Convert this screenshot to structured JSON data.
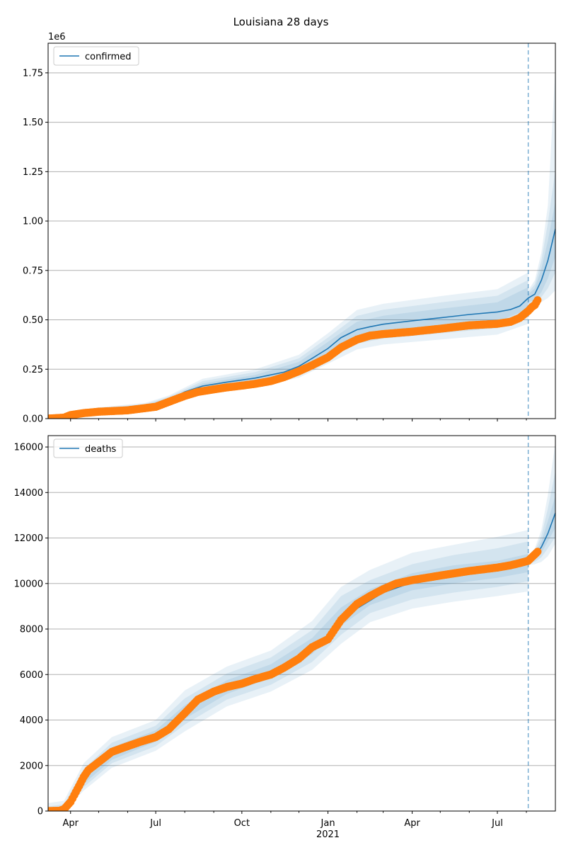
{
  "figure": {
    "title": "Louisiana 28 days"
  },
  "colors": {
    "line": "#1f77b4",
    "observed": "#ff7f0e",
    "band": "#1f77b4",
    "vline": "#1f77b4",
    "grid": "#b0b0b0"
  },
  "chart_data": [
    {
      "type": "line",
      "panel": "top",
      "legend": [
        "confirmed"
      ],
      "legend_loc": "upper-left",
      "offset_text": "1e6",
      "grid": "horizontal",
      "ylim": [
        0,
        1900000
      ],
      "yticks": [
        0,
        250000,
        500000,
        750000,
        1000000,
        1250000,
        1500000,
        1750000
      ],
      "ytick_labels": [
        "0.00",
        "0.25",
        "0.50",
        "0.75",
        "1.00",
        "1.25",
        "1.50",
        "1.75"
      ],
      "xlim": [
        "2020-03-08",
        "2021-09-01"
      ],
      "forecast_start": "2021-08-03",
      "model": {
        "x": [
          "2020-03-08",
          "2020-03-25",
          "2020-04-01",
          "2020-04-15",
          "2020-05-01",
          "2020-06-01",
          "2020-06-20",
          "2020-07-01",
          "2020-07-15",
          "2020-08-01",
          "2020-08-20",
          "2020-09-15",
          "2020-10-15",
          "2020-11-15",
          "2020-12-01",
          "2020-12-15",
          "2021-01-01",
          "2021-01-15",
          "2021-02-01",
          "2021-02-15",
          "2021-03-01",
          "2021-04-01",
          "2021-05-01",
          "2021-06-01",
          "2021-07-01",
          "2021-07-15",
          "2021-07-25",
          "2021-08-03",
          "2021-08-10",
          "2021-08-17",
          "2021-08-24",
          "2021-09-01"
        ],
        "y": [
          0,
          5000,
          20000,
          35000,
          45000,
          55000,
          62000,
          72000,
          95000,
          135000,
          165000,
          185000,
          205000,
          235000,
          265000,
          305000,
          355000,
          410000,
          450000,
          465000,
          478000,
          495000,
          510000,
          527000,
          540000,
          552000,
          570000,
          610000,
          630000,
          700000,
          800000,
          960000
        ]
      },
      "bands": {
        "x": [
          "2020-03-08",
          "2020-04-01",
          "2020-05-01",
          "2020-06-20",
          "2020-07-15",
          "2020-08-20",
          "2020-10-15",
          "2020-12-01",
          "2021-01-01",
          "2021-02-01",
          "2021-03-01",
          "2021-05-01",
          "2021-07-01",
          "2021-08-03"
        ],
        "inner": [
          [
            0,
            0
          ],
          [
            17000,
            23000
          ],
          [
            41000,
            49000
          ],
          [
            56000,
            68000
          ],
          [
            87000,
            103000
          ],
          [
            152000,
            178000
          ],
          [
            189000,
            221000
          ],
          [
            243000,
            287000
          ],
          [
            322000,
            388000
          ],
          [
            410000,
            490000
          ],
          [
            435000,
            521000
          ],
          [
            464000,
            556000
          ],
          [
            491000,
            589000
          ],
          [
            555000,
            665000
          ]
        ],
        "middle": [
          [
            0,
            0
          ],
          [
            14000,
            26000
          ],
          [
            37000,
            53000
          ],
          [
            50000,
            74000
          ],
          [
            80000,
            110000
          ],
          [
            140000,
            190000
          ],
          [
            175000,
            235000
          ],
          [
            225000,
            305000
          ],
          [
            300000,
            410000
          ],
          [
            380000,
            520000
          ],
          [
            405000,
            551000
          ],
          [
            432000,
            588000
          ],
          [
            458000,
            622000
          ],
          [
            518000,
            702000
          ]
        ],
        "outer": [
          [
            0,
            0
          ],
          [
            11000,
            29000
          ],
          [
            33000,
            57000
          ],
          [
            44000,
            80000
          ],
          [
            73000,
            117000
          ],
          [
            128000,
            202000
          ],
          [
            161000,
            249000
          ],
          [
            207000,
            323000
          ],
          [
            278000,
            432000
          ],
          [
            350000,
            550000
          ],
          [
            375000,
            581000
          ],
          [
            400000,
            620000
          ],
          [
            425000,
            655000
          ],
          [
            480000,
            740000
          ]
        ]
      },
      "forecast_bands": {
        "x": [
          "2021-08-03",
          "2021-08-10",
          "2021-08-17",
          "2021-08-24",
          "2021-09-01"
        ],
        "inner": [
          [
            590000,
            630000
          ],
          [
            600000,
            660000
          ],
          [
            640000,
            760000
          ],
          [
            710000,
            900000
          ],
          [
            820000,
            1100000
          ]
        ],
        "middle": [
          [
            580000,
            640000
          ],
          [
            585000,
            680000
          ],
          [
            615000,
            800000
          ],
          [
            660000,
            990000
          ],
          [
            740000,
            1260000
          ]
        ],
        "outer": [
          [
            570000,
            650000
          ],
          [
            570000,
            700000
          ],
          [
            590000,
            840000
          ],
          [
            610000,
            1080000
          ],
          [
            650000,
            1780000
          ]
        ]
      },
      "observed": {
        "x": [
          "2020-03-08",
          "2020-03-25",
          "2020-04-01",
          "2020-04-15",
          "2020-05-01",
          "2020-06-01",
          "2020-07-01",
          "2020-07-15",
          "2020-08-01",
          "2020-08-15",
          "2020-09-01",
          "2020-09-15",
          "2020-10-01",
          "2020-10-15",
          "2020-11-01",
          "2020-11-15",
          "2020-12-01",
          "2020-12-15",
          "2021-01-01",
          "2021-01-15",
          "2021-02-01",
          "2021-02-15",
          "2021-03-01",
          "2021-04-01",
          "2021-05-01",
          "2021-06-01",
          "2021-07-01",
          "2021-07-15",
          "2021-07-25",
          "2021-08-03",
          "2021-08-07",
          "2021-08-10",
          "2021-08-13"
        ],
        "y": [
          0,
          5000,
          18000,
          28000,
          35000,
          42000,
          60000,
          85000,
          115000,
          135000,
          148000,
          158000,
          167000,
          176000,
          190000,
          210000,
          240000,
          270000,
          310000,
          360000,
          400000,
          420000,
          428000,
          440000,
          455000,
          472000,
          480000,
          490000,
          510000,
          545000,
          565000,
          575000,
          600000
        ]
      }
    },
    {
      "type": "line",
      "panel": "bottom",
      "legend": [
        "deaths"
      ],
      "legend_loc": "upper-left",
      "grid": "horizontal",
      "ylim": [
        0,
        16500
      ],
      "yticks": [
        0,
        2000,
        4000,
        6000,
        8000,
        10000,
        12000,
        14000,
        16000
      ],
      "ytick_labels": [
        "0",
        "2000",
        "4000",
        "6000",
        "8000",
        "10000",
        "12000",
        "14000",
        "16000"
      ],
      "xlim": [
        "2020-03-08",
        "2021-09-01"
      ],
      "xticks": [
        "2020-04-01",
        "2020-07-01",
        "2020-10-01",
        "2021-01-01",
        "2021-04-01",
        "2021-07-01"
      ],
      "xtick_labels": [
        "Apr",
        "Jul",
        "Oct",
        "Jan",
        "Apr",
        "Jul"
      ],
      "xtick_sublabel": "2021",
      "forecast_start": "2021-08-03",
      "model": {
        "x": [
          "2020-03-08",
          "2020-03-25",
          "2020-04-01",
          "2020-04-15",
          "2020-05-01",
          "2020-06-01",
          "2020-07-01",
          "2020-08-01",
          "2020-09-01",
          "2020-10-01",
          "2020-11-01",
          "2020-12-01",
          "2021-01-01",
          "2021-02-01",
          "2021-03-01",
          "2021-04-01",
          "2021-05-01",
          "2021-06-01",
          "2021-07-01",
          "2021-07-15",
          "2021-08-03",
          "2021-08-10",
          "2021-08-17",
          "2021-08-24",
          "2021-09-01"
        ],
        "y": [
          0,
          50,
          300,
          1300,
          2200,
          2900,
          3250,
          4300,
          5300,
          5600,
          6100,
          6700,
          7700,
          8900,
          9600,
          10050,
          10350,
          10600,
          10750,
          10850,
          11000,
          11200,
          11600,
          12200,
          13100
        ]
      },
      "bands": {
        "x": [
          "2020-03-08",
          "2020-03-25",
          "2020-04-15",
          "2020-05-15",
          "2020-07-01",
          "2020-08-01",
          "2020-09-15",
          "2020-11-01",
          "2020-12-15",
          "2021-01-15",
          "2021-02-15",
          "2021-04-01",
          "2021-05-15",
          "2021-07-01",
          "2021-08-03"
        ],
        "inner": [
          [
            0,
            100
          ],
          [
            30,
            180
          ],
          [
            1200,
            1650
          ],
          [
            2250,
            2800
          ],
          [
            3050,
            3550
          ],
          [
            4050,
            4650
          ],
          [
            5150,
            5750
          ],
          [
            5850,
            6450
          ],
          [
            6900,
            7600
          ],
          [
            8150,
            8950
          ],
          [
            9050,
            9750
          ],
          [
            9700,
            10450
          ],
          [
            10000,
            10800
          ],
          [
            10250,
            11000
          ],
          [
            10500,
            11300
          ]
        ],
        "middle": [
          [
            0,
            200
          ],
          [
            20,
            300
          ],
          [
            1050,
            1850
          ],
          [
            2100,
            3000
          ],
          [
            2850,
            3750
          ],
          [
            3800,
            4950
          ],
          [
            4900,
            6050
          ],
          [
            5550,
            6750
          ],
          [
            6550,
            7950
          ],
          [
            7750,
            9450
          ],
          [
            8700,
            10150
          ],
          [
            9300,
            10850
          ],
          [
            9600,
            11250
          ],
          [
            9850,
            11550
          ],
          [
            10100,
            11850
          ]
        ],
        "outer": [
          [
            0,
            350
          ],
          [
            10,
            450
          ],
          [
            900,
            2100
          ],
          [
            1900,
            3250
          ],
          [
            2650,
            4000
          ],
          [
            3500,
            5300
          ],
          [
            4600,
            6350
          ],
          [
            5250,
            7050
          ],
          [
            6200,
            8350
          ],
          [
            7350,
            9850
          ],
          [
            8300,
            10600
          ],
          [
            8900,
            11350
          ],
          [
            9200,
            11700
          ],
          [
            9450,
            12050
          ],
          [
            9650,
            12350
          ]
        ]
      },
      "forecast_bands": {
        "x": [
          "2021-08-03",
          "2021-08-10",
          "2021-08-17",
          "2021-08-24",
          "2021-09-01"
        ],
        "inner": [
          [
            10900,
            11100
          ],
          [
            11050,
            11350
          ],
          [
            11350,
            11850
          ],
          [
            11850,
            12750
          ],
          [
            12450,
            13850
          ]
        ],
        "middle": [
          [
            10850,
            11150
          ],
          [
            10950,
            11450
          ],
          [
            11150,
            12100
          ],
          [
            11550,
            13300
          ],
          [
            12050,
            14950
          ]
        ],
        "outer": [
          [
            10800,
            11200
          ],
          [
            10850,
            11550
          ],
          [
            10950,
            12350
          ],
          [
            11200,
            13900
          ],
          [
            11750,
            16200
          ]
        ]
      },
      "observed": {
        "x": [
          "2020-03-08",
          "2020-03-20",
          "2020-03-25",
          "2020-04-01",
          "2020-04-05",
          "2020-04-10",
          "2020-04-15",
          "2020-04-20",
          "2020-05-01",
          "2020-05-15",
          "2020-06-01",
          "2020-06-15",
          "2020-07-01",
          "2020-07-15",
          "2020-08-01",
          "2020-08-15",
          "2020-09-01",
          "2020-09-15",
          "2020-10-01",
          "2020-10-15",
          "2020-11-01",
          "2020-11-15",
          "2020-12-01",
          "2020-12-15",
          "2021-01-01",
          "2021-01-15",
          "2021-02-01",
          "2021-02-15",
          "2021-03-01",
          "2021-03-15",
          "2021-04-01",
          "2021-05-01",
          "2021-06-01",
          "2021-07-01",
          "2021-07-15",
          "2021-07-25",
          "2021-08-03",
          "2021-08-08",
          "2021-08-13"
        ],
        "y": [
          0,
          10,
          80,
          400,
          700,
          1100,
          1500,
          1800,
          2150,
          2600,
          2850,
          3050,
          3250,
          3600,
          4300,
          4900,
          5250,
          5450,
          5600,
          5800,
          6000,
          6300,
          6700,
          7200,
          7550,
          8400,
          9100,
          9450,
          9750,
          10000,
          10150,
          10350,
          10550,
          10700,
          10800,
          10900,
          11000,
          11200,
          11400
        ]
      }
    }
  ]
}
